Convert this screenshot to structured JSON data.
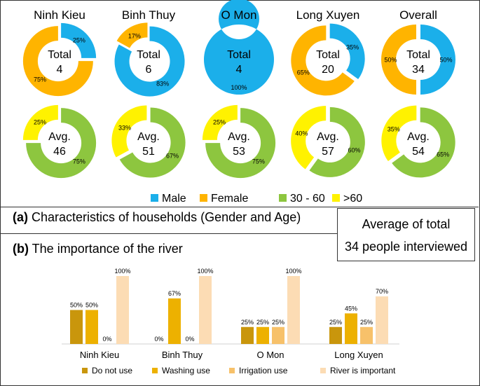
{
  "colors": {
    "male": "#1BAFEA",
    "female": "#FFB400",
    "mid_age": "#8DC63F",
    "old_age": "#FFF200",
    "do_not_use": "#C9960C",
    "washing_use": "#EDB100",
    "irrigation_use": "#F7C16A",
    "river_important": "#FCDCB4"
  },
  "legend_top": [
    {
      "label": "Male",
      "color": "#1BAFEA"
    },
    {
      "label": "Female",
      "color": "#FFB400"
    },
    {
      "label": "30 - 60",
      "color": "#8DC63F"
    },
    {
      "label": ">60",
      "color": "#FFF200"
    }
  ],
  "section_a": {
    "letter": "(a)",
    "text": "Characteristics of households (Gender and Age)"
  },
  "section_b": {
    "letter": "(b)",
    "text": "The importance of the river"
  },
  "avg_box": {
    "line1": "Average of total",
    "line2": "34 people interviewed"
  },
  "chart_data": [
    {
      "type": "pie",
      "subtype": "donut",
      "metric": "gender",
      "districts": [
        "Ninh Kieu",
        "Binh Thuy",
        "O Mon",
        "Long Xuyen",
        "Overall"
      ],
      "center_label": "Total",
      "totals": [
        "4",
        "6",
        "4",
        "20",
        "34"
      ],
      "male_pct": [
        25,
        83,
        100,
        35,
        50
      ],
      "female_pct": [
        75,
        17,
        0,
        65,
        50
      ],
      "male_labels": [
        "25%",
        "83%",
        "100%",
        "35%",
        "50%"
      ],
      "female_labels": [
        "75%",
        "17%",
        "",
        "65%",
        "50%"
      ]
    },
    {
      "type": "pie",
      "subtype": "donut",
      "metric": "age",
      "districts": [
        "Ninh Kieu",
        "Binh Thuy",
        "O Mon",
        "Long Xuyen",
        "Overall"
      ],
      "center_label": "Avg.",
      "averages": [
        "46",
        "51",
        "53",
        "57",
        "54"
      ],
      "age_30_60_pct": [
        75,
        67,
        75,
        60,
        65
      ],
      "age_over_60_pct": [
        25,
        33,
        25,
        40,
        35
      ],
      "age_30_60_labels": [
        "75%",
        "67%",
        "75%",
        "60%",
        "65%"
      ],
      "age_over_60_labels": [
        "25%",
        "33%",
        "25%",
        "40%",
        "35%"
      ]
    },
    {
      "type": "bar",
      "categories": [
        "Ninh Kieu",
        "Binh Thuy",
        "O Mon",
        "Long Xuyen"
      ],
      "ylim": [
        0,
        100
      ],
      "series": [
        {
          "name": "Do not use",
          "values": [
            50,
            0,
            25,
            25
          ],
          "labels": [
            "50%",
            "0%",
            "25%",
            "25%"
          ]
        },
        {
          "name": "Washing use",
          "values": [
            50,
            67,
            25,
            45
          ],
          "labels": [
            "50%",
            "67%",
            "25%",
            "45%"
          ]
        },
        {
          "name": "Irrigation use",
          "values": [
            0,
            0,
            25,
            25
          ],
          "labels": [
            "0%",
            "0%",
            "25%",
            "25%"
          ]
        },
        {
          "name": "River is important",
          "values": [
            100,
            100,
            100,
            70
          ],
          "labels": [
            "100%",
            "100%",
            "100%",
            "70%"
          ]
        }
      ]
    }
  ]
}
